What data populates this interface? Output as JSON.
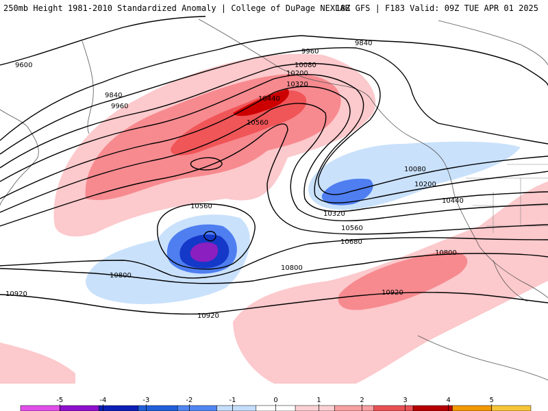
{
  "title": {
    "left": "250mb Height 1981-2010 Standardized Anomaly | College of DuPage NEXLAB",
    "right": "18Z GFS | F183 Valid: 09Z TUE APR 01 2025"
  },
  "colors": {
    "anom_pos_1": "#fcc9cc",
    "anom_pos_2": "#f78a8f",
    "anom_pos_3": "#f05558",
    "anom_pos_4": "#cc0000",
    "anom_neg_1": "#c9e1fb",
    "anom_neg_2": "#4f7ef0",
    "anom_neg_3": "#1438c8",
    "anom_neg_4": "#8b1fbf",
    "coast": "#555555",
    "contour": "#000000"
  },
  "contour_labels": [
    "9600",
    "9840",
    "9960",
    "10080",
    "10200",
    "10320",
    "10440",
    "10560",
    "9960",
    "9840",
    "10080",
    "10200",
    "10440",
    "10320",
    "10560",
    "10680",
    "10560",
    "10800",
    "10800",
    "10800",
    "10920",
    "10920",
    "10920"
  ],
  "colorbar": {
    "ticks": [
      "-5",
      "-4",
      "-3",
      "-2",
      "-1",
      "0",
      "1",
      "2",
      "3",
      "4",
      "5"
    ],
    "colors": [
      "#e14ee8",
      "#8d10cc",
      "#0c1fb4",
      "#1f5fd8",
      "#4f86f2",
      "#c4defb",
      "#ffffff",
      "#fcd0d2",
      "#f79fa1",
      "#e85054",
      "#b50000",
      "#f29800",
      "#f7c53a"
    ]
  }
}
